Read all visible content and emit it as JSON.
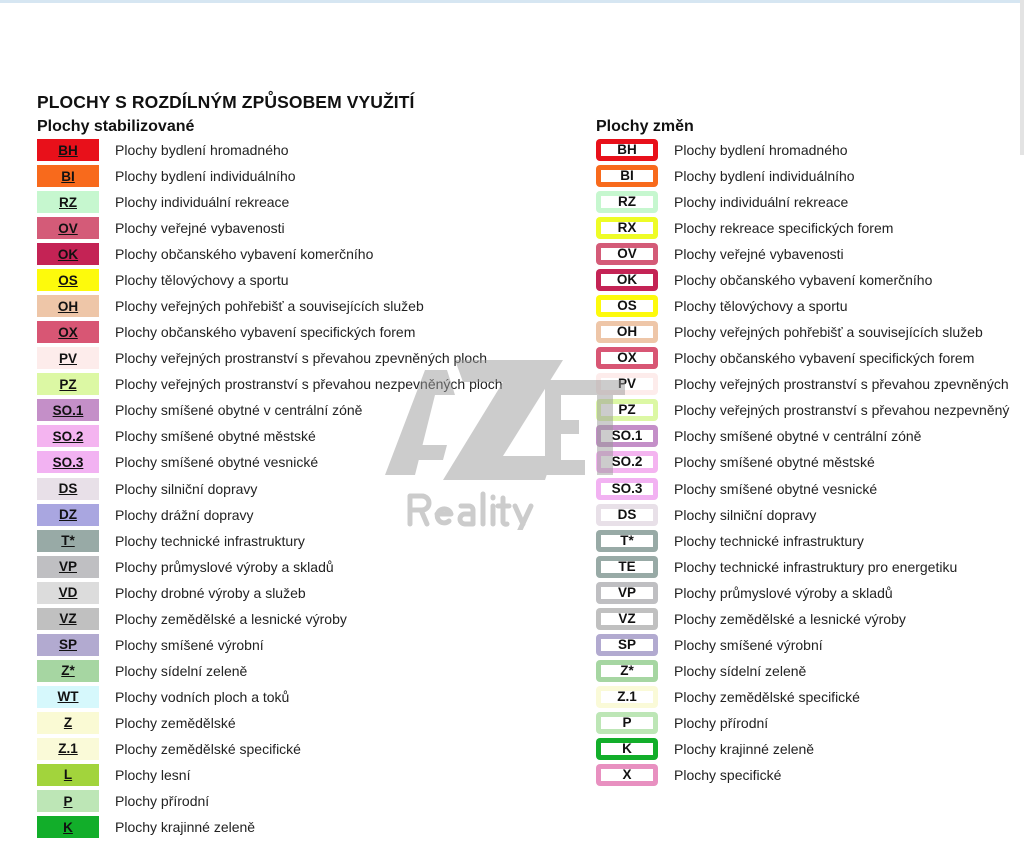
{
  "title": "PLOCHY S ROZDÍLNÝM ZPŮSOBEM VYUŽITÍ",
  "watermark": {
    "logo_text": "AZET",
    "sub_text": "Reality"
  },
  "stabilizovane": {
    "heading": "Plochy stabilizované",
    "items": [
      {
        "code": "BH",
        "label": "Plochy bydlení hromadného",
        "color": "#e8101a"
      },
      {
        "code": "BI",
        "label": "Plochy bydlení individuálního",
        "color": "#f86a1c"
      },
      {
        "code": "RZ",
        "label": "Plochy individuální rekreace",
        "color": "#c6f7cf"
      },
      {
        "code": "OV",
        "label": "Plochy veřejné vybavenosti",
        "color": "#d45b78"
      },
      {
        "code": "OK",
        "label": "Plochy občanského vybavení komerčního",
        "color": "#c42355"
      },
      {
        "code": "OS",
        "label": "Plochy tělovýchovy a sportu",
        "color": "#fdfa0c"
      },
      {
        "code": "OH",
        "label": "Plochy veřejných pohřebišť a souvisejících služeb",
        "color": "#eec6a8"
      },
      {
        "code": "OX",
        "label": "Plochy občanského vybavení specifických forem",
        "color": "#d85674"
      },
      {
        "code": "PV",
        "label": "Plochy veřejných prostranství s převahou zpevněných ploch",
        "color": "#fdeceb"
      },
      {
        "code": "PZ",
        "label": "Plochy veřejných prostranství s převahou nezpevněných ploch",
        "color": "#dcf8a4"
      },
      {
        "code": "SO.1",
        "label": "Plochy smíšené obytné v centrální zóně",
        "color": "#c48fc8"
      },
      {
        "code": "SO.2",
        "label": "Plochy smíšené obytné městské",
        "color": "#f4b4f0"
      },
      {
        "code": "SO.3",
        "label": "Plochy smíšené obytné vesnické",
        "color": "#f2b2f2"
      },
      {
        "code": "DS",
        "label": "Plochy silniční dopravy",
        "color": "#e8e0e8"
      },
      {
        "code": "DZ",
        "label": "Plochy drážní dopravy",
        "color": "#a9a6e0"
      },
      {
        "code": "T*",
        "label": "Plochy technické infrastruktury",
        "color": "#98aaa6"
      },
      {
        "code": "VP",
        "label": "Plochy průmyslové výroby a skladů",
        "color": "#bfbfc2"
      },
      {
        "code": "VD",
        "label": "Plochy drobné výroby a služeb",
        "color": "#dcdcdc"
      },
      {
        "code": "VZ",
        "label": "Plochy zemědělské a lesnické výroby",
        "color": "#c0c0c0"
      },
      {
        "code": "SP",
        "label": "Plochy smíšené výrobní",
        "color": "#b2aad0"
      },
      {
        "code": "Z*",
        "label": "Plochy sídelní zeleně",
        "color": "#a6d6a2"
      },
      {
        "code": "WT",
        "label": "Plochy vodních ploch a toků",
        "color": "#d6f8fc"
      },
      {
        "code": "Z",
        "label": "Plochy zemědělské",
        "color": "#fafad4"
      },
      {
        "code": "Z.1",
        "label": "Plochy zemědělské specifické",
        "color": "#fafad8"
      },
      {
        "code": "L",
        "label": "Plochy lesní",
        "color": "#a2d43c"
      },
      {
        "code": "P",
        "label": "Plochy přírodní",
        "color": "#bde6b6"
      },
      {
        "code": "K",
        "label": "Plochy krajinné zeleně",
        "color": "#12ae2a"
      }
    ]
  },
  "zmeny": {
    "heading": "Plochy změn",
    "items": [
      {
        "code": "BH",
        "label": "Plochy bydlení hromadného",
        "color": "#e8101a"
      },
      {
        "code": "BI",
        "label": "Plochy bydlení individuálního",
        "color": "#f86a1c"
      },
      {
        "code": "RZ",
        "label": "Plochy individuální rekreace",
        "color": "#c6f7cf"
      },
      {
        "code": "RX",
        "label": "Plochy rekreace specifických forem",
        "color": "#eefc26"
      },
      {
        "code": "OV",
        "label": "Plochy veřejné vybavenosti",
        "color": "#d45b78"
      },
      {
        "code": "OK",
        "label": "Plochy občanského vybavení komerčního",
        "color": "#c42355"
      },
      {
        "code": "OS",
        "label": "Plochy tělovýchovy a sportu",
        "color": "#fdfa0c"
      },
      {
        "code": "OH",
        "label": "Plochy veřejných pohřebišť a souvisejících služeb",
        "color": "#eec6a8"
      },
      {
        "code": "OX",
        "label": "Plochy občanského vybavení specifických forem",
        "color": "#d85674"
      },
      {
        "code": "PV",
        "label": "Plochy veřejných prostranství s převahou zpevněných",
        "color": "#fdeceb"
      },
      {
        "code": "PZ",
        "label": "Plochy veřejných prostranství s převahou nezpevněný",
        "color": "#dcf8a4"
      },
      {
        "code": "SO.1",
        "label": "Plochy smíšené obytné v centrální zóně",
        "color": "#c48fc8"
      },
      {
        "code": "SO.2",
        "label": "Plochy smíšené obytné městské",
        "color": "#f4b4f0"
      },
      {
        "code": "SO.3",
        "label": "Plochy smíšené obytné vesnické",
        "color": "#f2b2f2"
      },
      {
        "code": "DS",
        "label": "Plochy silniční dopravy",
        "color": "#e8e0e8"
      },
      {
        "code": "T*",
        "label": "Plochy technické infrastruktury",
        "color": "#98aaa6"
      },
      {
        "code": "TE",
        "label": "Plochy technické infrastruktury pro energetiku",
        "color": "#98aaa6"
      },
      {
        "code": "VP",
        "label": "Plochy průmyslové výroby a skladů",
        "color": "#bfbfc2"
      },
      {
        "code": "VZ",
        "label": "Plochy zemědělské a lesnické výroby",
        "color": "#c0c0c0"
      },
      {
        "code": "SP",
        "label": "Plochy smíšené výrobní",
        "color": "#b2aad0"
      },
      {
        "code": "Z*",
        "label": "Plochy sídelní zeleně",
        "color": "#a6d6a2"
      },
      {
        "code": "Z.1",
        "label": "Plochy zemědělské specifické",
        "color": "#fafad8"
      },
      {
        "code": "P",
        "label": "Plochy přírodní",
        "color": "#bde6b6"
      },
      {
        "code": "K",
        "label": "Plochy krajinné zeleně",
        "color": "#12ae2a"
      },
      {
        "code": "X",
        "label": "Plochy specifické",
        "color": "#e890c0"
      }
    ]
  }
}
